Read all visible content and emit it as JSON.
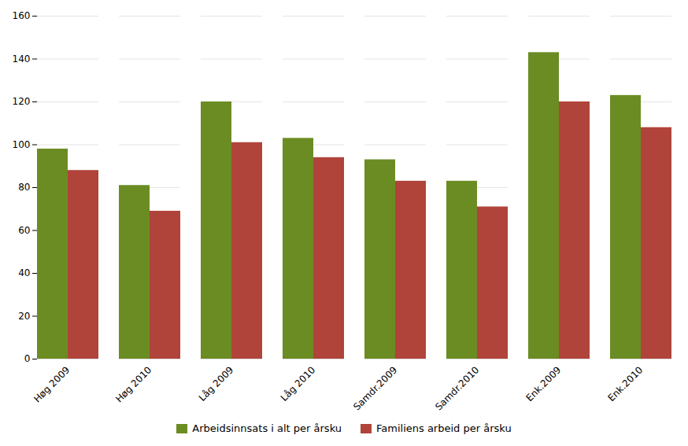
{
  "chart_data": {
    "type": "bar",
    "categories": [
      "Høg 2009",
      "Høg 2010",
      "Låg 2009",
      "Låg 2010",
      "Samdr.2009",
      "Samdr.2010",
      "Enk.2009",
      "Enk.2010"
    ],
    "series": [
      {
        "name": "Arbeidsinnsats i alt per årsku",
        "color": "#6b8c23",
        "values": [
          98,
          81,
          120,
          103,
          93,
          83,
          143,
          123
        ]
      },
      {
        "name": "Familiens arbeid per årsku",
        "color": "#b0443a",
        "values": [
          88,
          69,
          101,
          94,
          83,
          71,
          120,
          108
        ]
      }
    ],
    "ylim": [
      0,
      160
    ],
    "yticks": [
      0,
      20,
      40,
      60,
      80,
      100,
      120,
      140,
      160
    ],
    "grid": true,
    "legend": "bottom"
  }
}
